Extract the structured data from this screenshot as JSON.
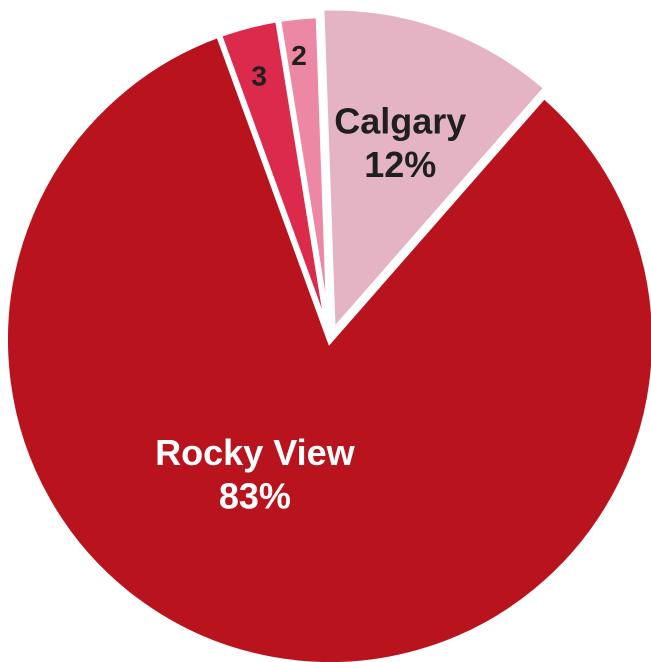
{
  "chart_data": {
    "type": "pie",
    "start_angle_deg": -2,
    "direction": "clockwise",
    "slices": [
      {
        "label": "Calgary",
        "value": 12,
        "value_label": "12%",
        "color": "#e4b4c4",
        "text_color": "#1f1f1f"
      },
      {
        "label": "Rocky View",
        "value": 83,
        "value_label": "83%",
        "color": "#b9141e",
        "text_color": "#ffffff"
      },
      {
        "label": "3",
        "value": 3,
        "value_label": "",
        "color": "#dc2a4c",
        "text_color": "#1f1f1f"
      },
      {
        "label": "2",
        "value": 2,
        "value_label": "",
        "color": "#ec88a4",
        "text_color": "#1f1f1f"
      }
    ]
  }
}
